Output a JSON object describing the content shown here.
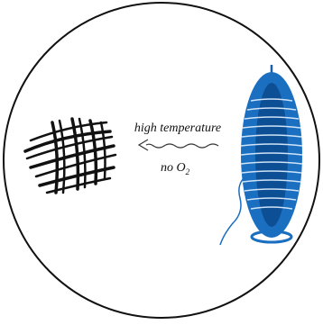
{
  "labels": {
    "top": "high temperature",
    "bottom_main": "no O",
    "bottom_sub": "2"
  }
}
